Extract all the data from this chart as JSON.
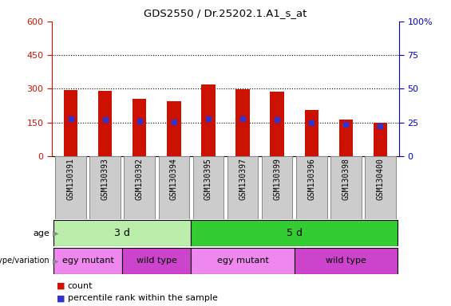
{
  "title": "GDS2550 / Dr.25202.1.A1_s_at",
  "samples": [
    "GSM130391",
    "GSM130393",
    "GSM130392",
    "GSM130394",
    "GSM130395",
    "GSM130397",
    "GSM130399",
    "GSM130396",
    "GSM130398",
    "GSM130400"
  ],
  "counts": [
    293,
    290,
    255,
    245,
    320,
    298,
    287,
    205,
    163,
    148
  ],
  "percentile_ranks": [
    165,
    163,
    155,
    152,
    168,
    167,
    163,
    150,
    143,
    133
  ],
  "ylim_left": [
    0,
    600
  ],
  "ylim_right": [
    0,
    100
  ],
  "yticks_left": [
    0,
    150,
    300,
    450,
    600
  ],
  "yticks_right": [
    0,
    25,
    50,
    75,
    100
  ],
  "ytick_labels_right": [
    "0",
    "25",
    "50",
    "75",
    "100%"
  ],
  "bar_color": "#cc1100",
  "blue_color": "#3333cc",
  "bar_width": 0.4,
  "age_groups": [
    {
      "label": "3 d",
      "start": 0,
      "end": 4,
      "color": "#bbeeaa"
    },
    {
      "label": "5 d",
      "start": 4,
      "end": 10,
      "color": "#33cc33"
    }
  ],
  "genotype_groups": [
    {
      "label": "egy mutant",
      "start": 0,
      "end": 2,
      "color": "#ee88ee"
    },
    {
      "label": "wild type",
      "start": 2,
      "end": 4,
      "color": "#cc44cc"
    },
    {
      "label": "egy mutant",
      "start": 4,
      "end": 7,
      "color": "#ee88ee"
    },
    {
      "label": "wild type",
      "start": 7,
      "end": 10,
      "color": "#cc44cc"
    }
  ],
  "age_label": "age",
  "genotype_label": "genotype/variation",
  "legend_count": "count",
  "legend_percentile": "percentile rank within the sample",
  "grid_color": "black",
  "tick_color_left": "#cc1100",
  "tick_color_right": "#0000cc",
  "xtick_bg": "#cccccc",
  "xtick_border": "#888888"
}
